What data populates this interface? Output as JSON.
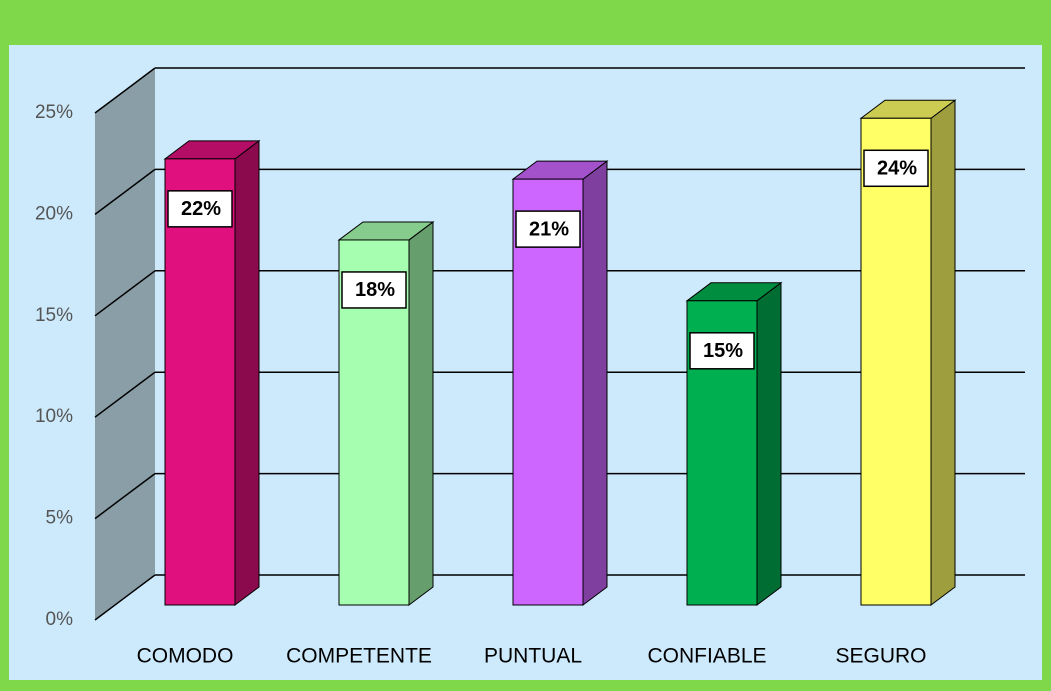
{
  "chart_data": {
    "type": "bar3d",
    "categories": [
      "COMODO",
      "COMPETENTE",
      "PUNTUAL",
      "CONFIABLE",
      "SEGURO"
    ],
    "values": [
      22,
      18,
      21,
      15,
      24
    ],
    "value_labels": [
      "22%",
      "18%",
      "21%",
      "15%",
      "24%"
    ],
    "colors": [
      "#e0107e",
      "#a6ffb0",
      "#cc66ff",
      "#00b050",
      "#ffff66"
    ],
    "ylim": [
      0,
      25
    ],
    "yticks": [
      {
        "value": 0,
        "label": "0%"
      },
      {
        "value": 5,
        "label": "5%"
      },
      {
        "value": 10,
        "label": "10%"
      },
      {
        "value": 15,
        "label": "15%"
      },
      {
        "value": 20,
        "label": "20%"
      },
      {
        "value": 25,
        "label": "25%"
      }
    ],
    "grid": true
  }
}
